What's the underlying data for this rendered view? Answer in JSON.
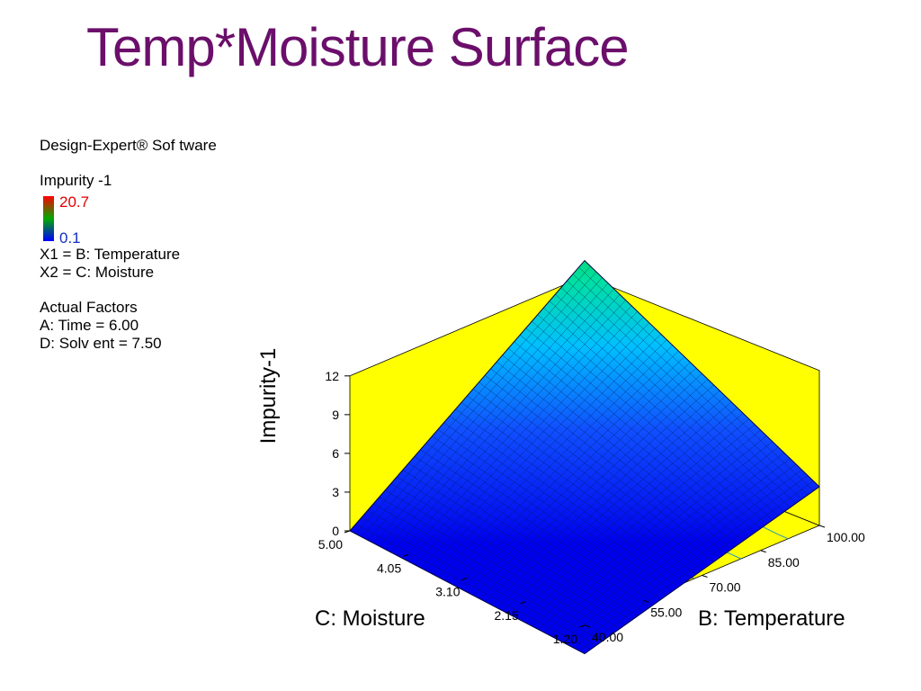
{
  "title": "Temp*Moisture Surface",
  "legend": {
    "software": "Design-Expert® Sof tware",
    "response": "Impurity -1",
    "color_max": "20.7",
    "color_min": "0.1",
    "x1": "X1 = B: Temperature",
    "x2": "X2 = C: Moisture",
    "actual_factors_heading": "Actual Factors",
    "factor_a": "A: Time = 6.00",
    "factor_d": "D: Solv ent = 7.50"
  },
  "chart_data": {
    "type": "surface",
    "zlabel": "Impurity-1",
    "xlabel": "B: Temperature",
    "ylabel": "C: Moisture",
    "z_ticks": [
      "0",
      "3",
      "6",
      "9",
      "12"
    ],
    "temperature_ticks": [
      "40.00",
      "55.00",
      "70.00",
      "85.00",
      "100.00"
    ],
    "moisture_ticks": [
      "1.20",
      "2.15",
      "3.10",
      "4.05",
      "5.00"
    ],
    "zlim": [
      0,
      12
    ],
    "temperature_range": [
      40,
      100
    ],
    "moisture_range": [
      1.2,
      5.0
    ],
    "surface_corners": [
      {
        "temperature": 40,
        "moisture": 1.2,
        "impurity": -2.2
      },
      {
        "temperature": 100,
        "moisture": 1.2,
        "impurity": 3.0
      },
      {
        "temperature": 40,
        "moisture": 5.0,
        "impurity": 0.0
      },
      {
        "temperature": 100,
        "moisture": 5.0,
        "impurity": 13.2
      }
    ],
    "colors": {
      "wall": "#ffff00",
      "low": "#0000ff",
      "high": "#00cc00",
      "title": "#6b0f6b"
    }
  }
}
